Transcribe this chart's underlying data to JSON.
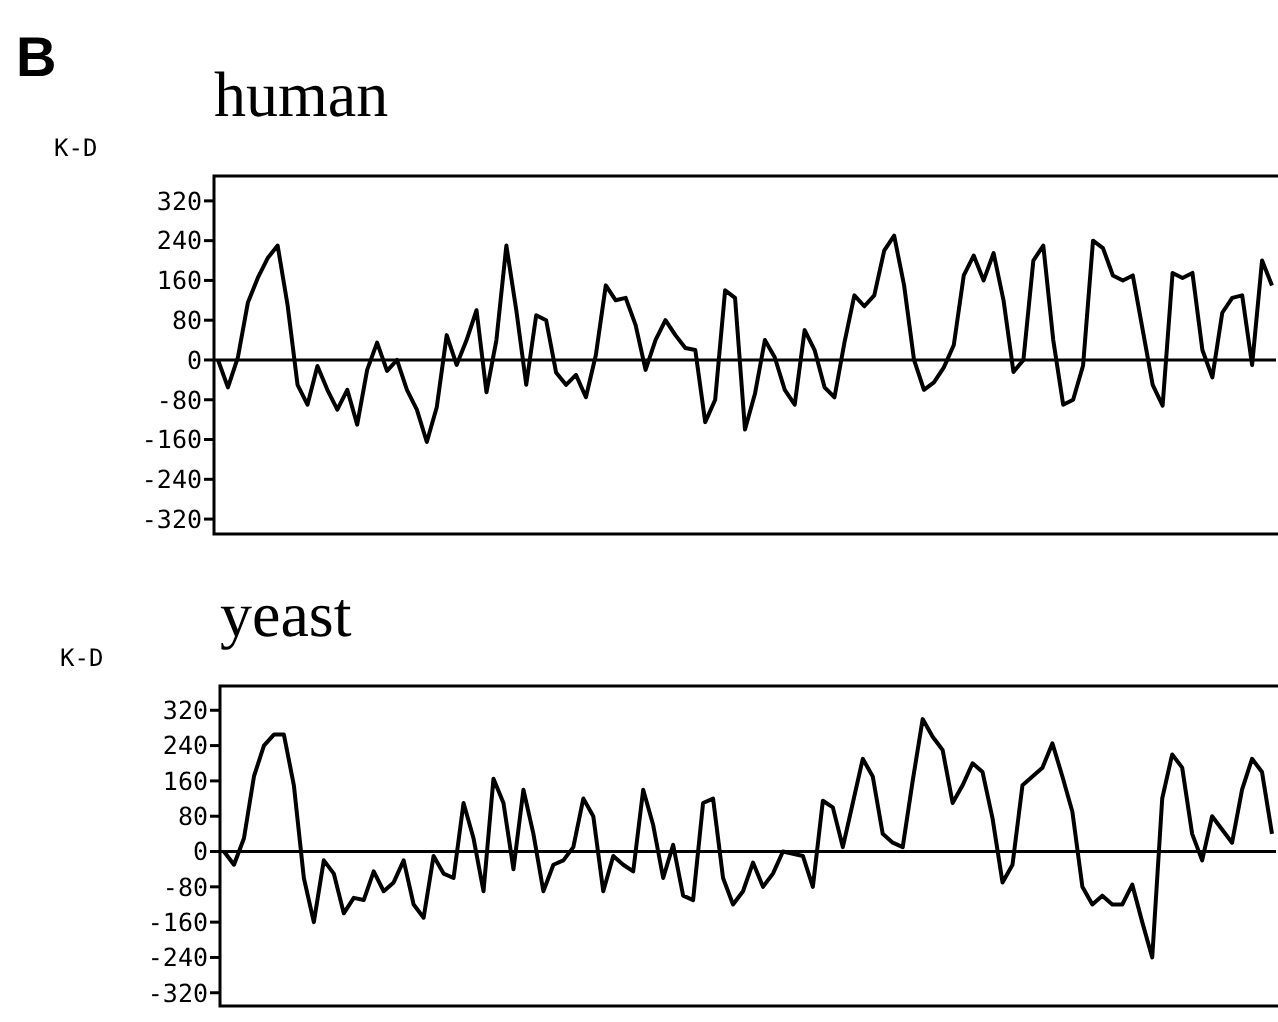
{
  "chart_data": [
    {
      "type": "line",
      "title": "human",
      "ylabel": "K-D",
      "annotations": [
        "B"
      ],
      "color": "#000000",
      "grid": false,
      "marker": "none",
      "line_style": "solid",
      "ylim": [
        -350,
        370
      ],
      "yticks": [
        -320,
        -240,
        -160,
        -80,
        0,
        80,
        160,
        240,
        320
      ],
      "ref_lines": [
        {
          "axis": "y",
          "value": 0,
          "color": "#000000"
        }
      ],
      "categories": [
        null,
        null,
        null,
        null,
        null,
        null,
        null,
        null,
        null,
        null,
        null,
        null,
        null,
        null,
        null,
        null,
        null,
        null,
        null,
        null,
        null,
        null,
        null,
        null,
        null,
        null,
        null,
        null,
        null,
        null,
        null,
        null,
        null,
        null,
        null,
        null,
        null,
        null,
        null,
        null,
        null,
        null,
        null,
        null,
        null,
        null,
        null,
        null,
        null,
        null,
        null,
        null,
        null,
        null,
        null,
        null,
        null,
        null,
        null,
        null,
        null,
        null,
        null,
        null,
        null,
        null,
        null,
        null,
        null,
        null,
        null,
        null,
        null,
        null,
        null,
        null,
        null,
        null,
        null,
        null,
        null,
        null,
        null,
        null,
        null,
        null,
        null,
        null,
        null,
        null,
        null,
        null,
        null,
        null,
        null,
        null,
        null,
        null,
        null,
        null,
        null,
        null,
        null,
        null,
        null,
        null,
        null
      ],
      "values": [
        0,
        -55,
        5,
        115,
        165,
        205,
        230,
        110,
        -50,
        -90,
        -12,
        -60,
        -100,
        -60,
        -130,
        -20,
        35,
        -22,
        0,
        -60,
        -100,
        -165,
        -95,
        50,
        -10,
        40,
        100,
        -65,
        40,
        230,
        100,
        -50,
        90,
        80,
        -25,
        -50,
        -30,
        -75,
        10,
        150,
        120,
        125,
        70,
        -20,
        40,
        80,
        50,
        24,
        20,
        -125,
        -80,
        140,
        125,
        -140,
        -68,
        40,
        5,
        -60,
        -90,
        60,
        20,
        -55,
        -75,
        35,
        130,
        108,
        130,
        220,
        250,
        150,
        0,
        -60,
        -45,
        -15,
        30,
        170,
        210,
        160,
        215,
        120,
        -24,
        0,
        200,
        230,
        40,
        -90,
        -80,
        -11,
        240,
        225,
        170,
        160,
        170,
        60,
        -50,
        -92,
        175,
        165,
        175,
        20,
        -35,
        95,
        125,
        130,
        -10,
        200,
        150
      ]
    },
    {
      "type": "line",
      "title": "yeast",
      "ylabel": "K-D",
      "color": "#000000",
      "grid": false,
      "marker": "none",
      "line_style": "solid",
      "ylim": [
        -350,
        375
      ],
      "yticks": [
        -320,
        -240,
        -160,
        -80,
        0,
        80,
        160,
        240,
        320
      ],
      "ref_lines": [
        {
          "axis": "y",
          "value": 0,
          "color": "#000000"
        }
      ],
      "categories": [
        null,
        null,
        null,
        null,
        null,
        null,
        null,
        null,
        null,
        null,
        null,
        null,
        null,
        null,
        null,
        null,
        null,
        null,
        null,
        null,
        null,
        null,
        null,
        null,
        null,
        null,
        null,
        null,
        null,
        null,
        null,
        null,
        null,
        null,
        null,
        null,
        null,
        null,
        null,
        null,
        null,
        null,
        null,
        null,
        null,
        null,
        null,
        null,
        null,
        null,
        null,
        null,
        null,
        null,
        null,
        null,
        null,
        null,
        null,
        null,
        null,
        null,
        null,
        null,
        null,
        null,
        null,
        null,
        null,
        null,
        null,
        null,
        null,
        null,
        null,
        null,
        null,
        null,
        null,
        null,
        null,
        null,
        null,
        null,
        null,
        null,
        null,
        null,
        null,
        null,
        null,
        null,
        null,
        null,
        null,
        null,
        null,
        null,
        null,
        null,
        null,
        null,
        null,
        null,
        null,
        null
      ],
      "values": [
        0,
        -30,
        30,
        170,
        240,
        265,
        265,
        150,
        -60,
        -160,
        -20,
        -50,
        -140,
        -105,
        -110,
        -45,
        -90,
        -70,
        -20,
        -120,
        -150,
        -10,
        -50,
        -60,
        110,
        30,
        -90,
        165,
        110,
        -40,
        140,
        40,
        -90,
        -30,
        -20,
        10,
        120,
        80,
        -90,
        -10,
        -30,
        -45,
        140,
        60,
        -60,
        15,
        -100,
        -110,
        110,
        120,
        -60,
        -120,
        -90,
        -25,
        -80,
        -50,
        0,
        -5,
        -10,
        -80,
        115,
        100,
        10,
        110,
        210,
        170,
        40,
        20,
        10,
        160,
        300,
        260,
        230,
        110,
        150,
        200,
        180,
        75,
        -70,
        -30,
        150,
        170,
        190,
        245,
        170,
        90,
        -80,
        -120,
        -100,
        -120,
        -120,
        -75,
        -160,
        -240,
        120,
        220,
        190,
        40,
        -20,
        80,
        50,
        20,
        140,
        210,
        180,
        40
      ]
    }
  ]
}
